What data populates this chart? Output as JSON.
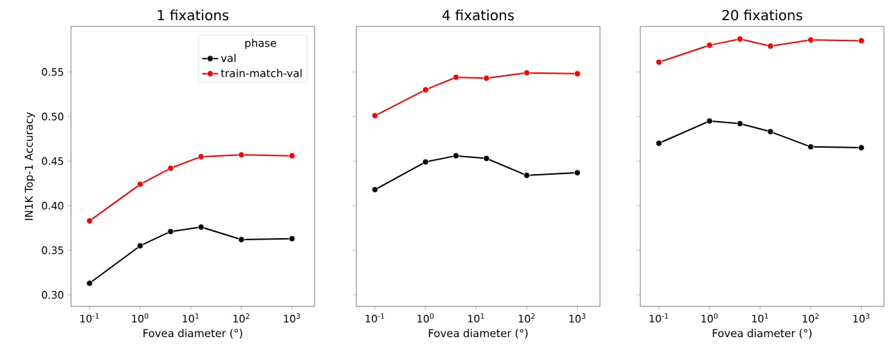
{
  "chart_data": [
    {
      "type": "line",
      "title": "1 fixations",
      "xlabel": "Fovea diameter (°)",
      "ylabel": "IN1K Top-1 Accuracy",
      "log": "x",
      "marker": "circle",
      "line_style": "solid",
      "legend": "top right",
      "legend_title": "phase",
      "x": [
        0.1,
        1,
        4,
        16,
        100,
        1000
      ],
      "xlim": [
        0.043,
        2800
      ],
      "ylim": [
        0.287,
        0.601
      ],
      "xticks": [
        {
          "value": 0.1,
          "label": "10$^{-1}$"
        },
        {
          "value": 1,
          "label": "10$^{0}$"
        },
        {
          "value": 10,
          "label": "10$^{1}$"
        },
        {
          "value": 100,
          "label": "10$^{2}$"
        },
        {
          "value": 1000,
          "label": "10$^{3}$"
        }
      ],
      "yticks": [
        {
          "value": 0.3,
          "label": "0.30"
        },
        {
          "value": 0.35,
          "label": "0.35"
        },
        {
          "value": 0.4,
          "label": "0.40"
        },
        {
          "value": 0.45,
          "label": "0.45"
        },
        {
          "value": 0.5,
          "label": "0.50"
        },
        {
          "value": 0.55,
          "label": "0.55"
        }
      ],
      "series": [
        {
          "name": "val",
          "color": "#000000",
          "values": [
            0.313,
            0.355,
            0.371,
            0.376,
            0.362,
            0.363
          ]
        },
        {
          "name": "train-match-val",
          "color": "#ff0000",
          "values": [
            0.383,
            0.424,
            0.442,
            0.455,
            0.457,
            0.456
          ]
        }
      ]
    },
    {
      "type": "line",
      "title": "4 fixations",
      "xlabel": "Fovea diameter (°)",
      "log": "x",
      "marker": "circle",
      "line_style": "solid",
      "tick_labels": "x",
      "x": [
        0.1,
        1,
        4,
        16,
        100,
        1000
      ],
      "xlim": [
        0.043,
        2800
      ],
      "ylim": [
        0.287,
        0.601
      ],
      "xticks": [
        {
          "value": 0.1,
          "label": "10$^{-1}$"
        },
        {
          "value": 1,
          "label": "10$^{0}$"
        },
        {
          "value": 10,
          "label": "10$^{1}$"
        },
        {
          "value": 100,
          "label": "10$^{2}$"
        },
        {
          "value": 1000,
          "label": "10$^{3}$"
        }
      ],
      "yticks": [
        0.3,
        0.35,
        0.4,
        0.45,
        0.5,
        0.55
      ],
      "series": [
        {
          "color": "#000000",
          "values": [
            0.418,
            0.449,
            0.456,
            0.453,
            0.434,
            0.437
          ]
        },
        {
          "color": "#ff0000",
          "values": [
            0.501,
            0.53,
            0.544,
            0.543,
            0.549,
            0.548
          ]
        }
      ]
    },
    {
      "type": "line",
      "title": "20 fixations",
      "xlabel": "Fovea diameter (°)",
      "log": "x",
      "marker": "circle",
      "line_style": "solid",
      "tick_labels": "x",
      "x": [
        0.1,
        1,
        4,
        16,
        100,
        1000
      ],
      "xlim": [
        0.043,
        2800
      ],
      "ylim": [
        0.287,
        0.601
      ],
      "xticks": [
        {
          "value": 0.1,
          "label": "10$^{-1}$"
        },
        {
          "value": 1,
          "label": "10$^{0}$"
        },
        {
          "value": 10,
          "label": "10$^{1}$"
        },
        {
          "value": 100,
          "label": "10$^{2}$"
        },
        {
          "value": 1000,
          "label": "10$^{3}$"
        }
      ],
      "yticks": [
        0.3,
        0.35,
        0.4,
        0.45,
        0.5,
        0.55
      ],
      "series": [
        {
          "color": "#000000",
          "values": [
            0.47,
            0.495,
            0.492,
            0.483,
            0.466,
            0.465
          ]
        },
        {
          "color": "#ff0000",
          "values": [
            0.561,
            0.58,
            0.587,
            0.579,
            0.586,
            0.585
          ]
        }
      ]
    }
  ]
}
